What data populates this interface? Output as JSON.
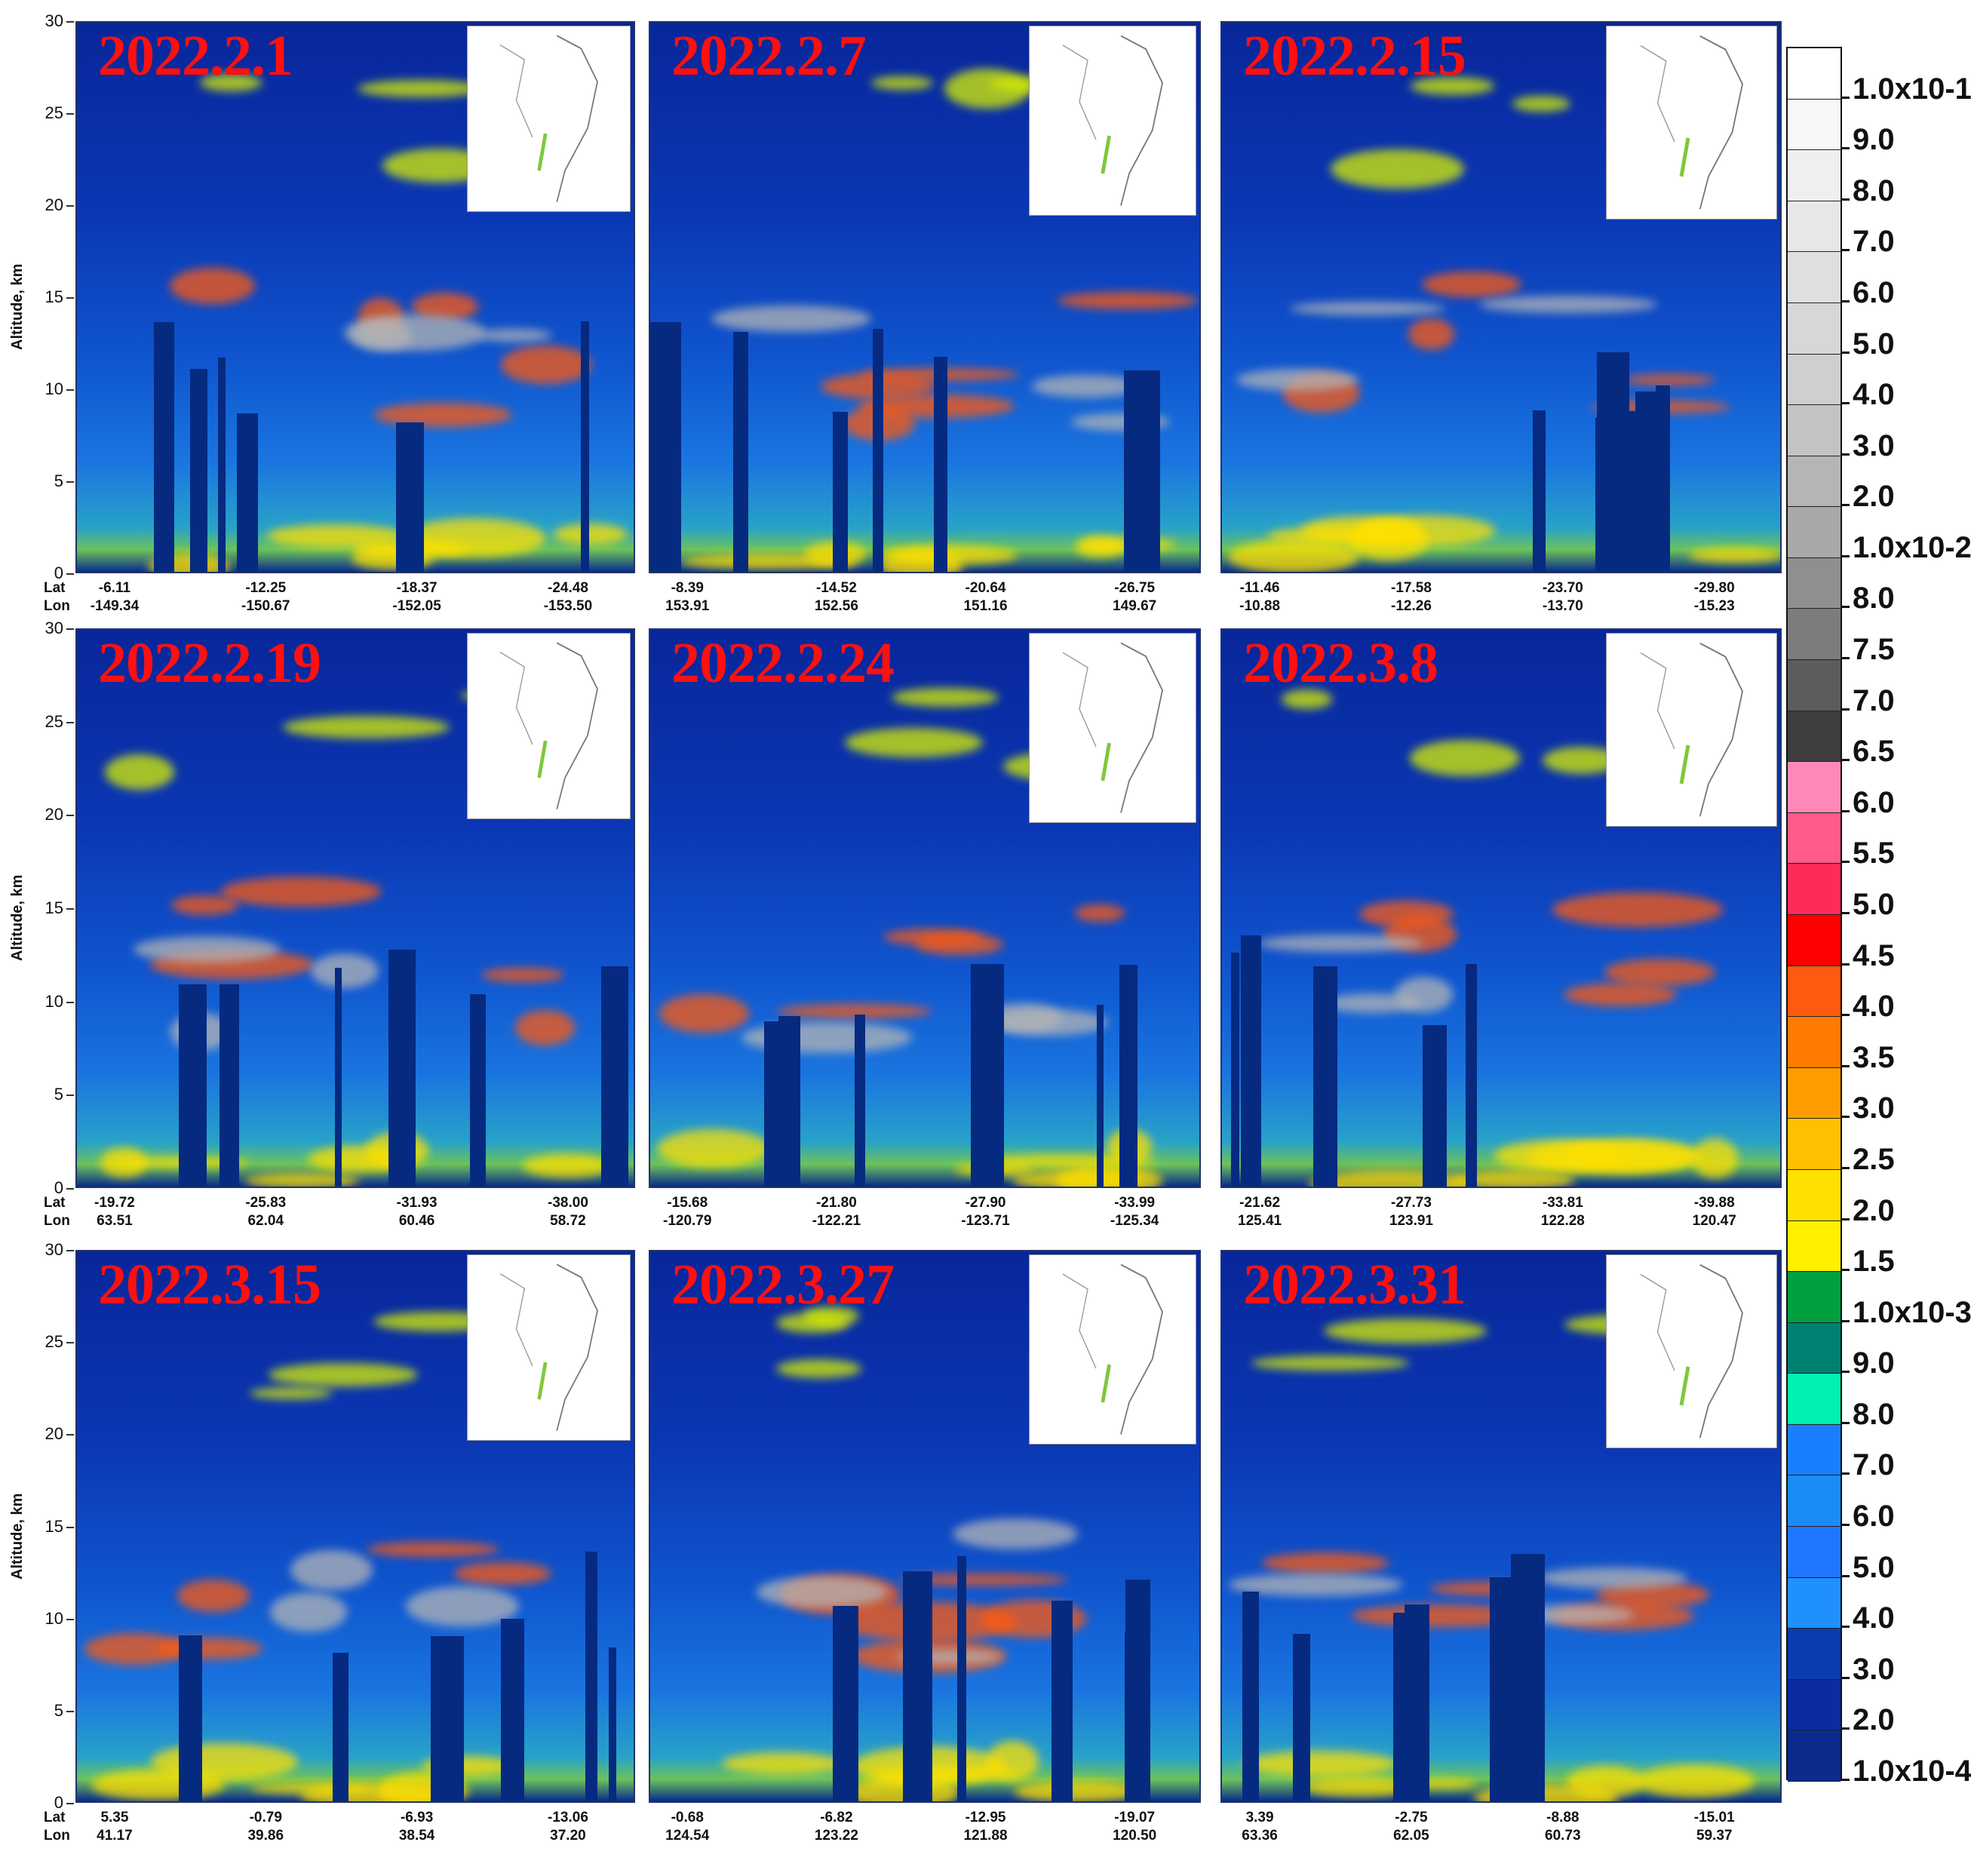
{
  "yaxis": {
    "label": "Altitude, km",
    "ticks": [
      "30",
      "25",
      "20",
      "15",
      "10",
      "5",
      "0"
    ]
  },
  "row_labels": {
    "lat": "Lat",
    "lon": "Lon"
  },
  "colorbar": {
    "labels": [
      "1.0x10-1",
      "9.0",
      "8.0",
      "7.0",
      "6.0",
      "5.0",
      "4.0",
      "3.0",
      "2.0",
      "1.0x10-2",
      "8.0",
      "7.5",
      "7.0",
      "6.5",
      "6.0",
      "5.5",
      "5.0",
      "4.5",
      "4.0",
      "3.5",
      "3.0",
      "2.5",
      "2.0",
      "1.5",
      "1.0x10-3",
      "9.0",
      "8.0",
      "7.0",
      "6.0",
      "5.0",
      "4.0",
      "3.0",
      "2.0",
      "1.0x10-4"
    ],
    "colors": [
      "#ffffff",
      "#f7f7f7",
      "#efefef",
      "#e7e7e7",
      "#dfdfdf",
      "#d7d7d7",
      "#cfcfcf",
      "#c3c3c3",
      "#b5b5b5",
      "#a8a8a8",
      "#8f8f8f",
      "#7c7c7c",
      "#5c5c5c",
      "#3e3e3e",
      "#ff88b8",
      "#ff5a88",
      "#ff2a5a",
      "#ff0000",
      "#ff5a0f",
      "#ff7a00",
      "#ff9d00",
      "#ffc000",
      "#ffe000",
      "#fff000",
      "#00a040",
      "#008070",
      "#00f0b0",
      "#1a7fff",
      "#1a8cf8",
      "#1f77ff",
      "#2090ff",
      "#0a3cb0",
      "#0a2ca0",
      "#0a2a8c"
    ]
  },
  "chart_data": [
    {
      "type": "heatmap",
      "date": "2022.2.1",
      "lat": [
        "-6.11",
        "-12.25",
        "-18.37",
        "-24.48"
      ],
      "lon": [
        "-149.34",
        "-150.67",
        "-152.05",
        "-153.50"
      ],
      "ylim": [
        0,
        30
      ],
      "ylabel": "Altitude, km"
    },
    {
      "type": "heatmap",
      "date": "2022.2.7",
      "lat": [
        "-8.39",
        "-14.52",
        "-20.64",
        "-26.75"
      ],
      "lon": [
        "153.91",
        "152.56",
        "151.16",
        "149.67"
      ],
      "ylim": [
        0,
        30
      ]
    },
    {
      "type": "heatmap",
      "date": "2022.2.15",
      "lat": [
        "-11.46",
        "-17.58",
        "-23.70",
        "-29.80"
      ],
      "lon": [
        "-10.88",
        "-12.26",
        "-13.70",
        "-15.23"
      ],
      "ylim": [
        0,
        30
      ]
    },
    {
      "type": "heatmap",
      "date": "2022.2.19",
      "lat": [
        "-19.72",
        "-25.83",
        "-31.93",
        "-38.00"
      ],
      "lon": [
        "63.51",
        "62.04",
        "60.46",
        "58.72"
      ],
      "ylim": [
        0,
        30
      ],
      "ylabel": "Altitude, km"
    },
    {
      "type": "heatmap",
      "date": "2022.2.24",
      "lat": [
        "-15.68",
        "-21.80",
        "-27.90",
        "-33.99"
      ],
      "lon": [
        "-120.79",
        "-122.21",
        "-123.71",
        "-125.34"
      ],
      "ylim": [
        0,
        30
      ]
    },
    {
      "type": "heatmap",
      "date": "2022.3.8",
      "lat": [
        "-21.62",
        "-27.73",
        "-33.81",
        "-39.88"
      ],
      "lon": [
        "125.41",
        "123.91",
        "122.28",
        "120.47"
      ],
      "ylim": [
        0,
        30
      ]
    },
    {
      "type": "heatmap",
      "date": "2022.3.15",
      "lat": [
        "5.35",
        "-0.79",
        "-6.93",
        "-13.06"
      ],
      "lon": [
        "41.17",
        "39.86",
        "38.54",
        "37.20"
      ],
      "ylim": [
        0,
        30
      ],
      "ylabel": "Altitude, km"
    },
    {
      "type": "heatmap",
      "date": "2022.3.27",
      "lat": [
        "-0.68",
        "-6.82",
        "-12.95",
        "-19.07"
      ],
      "lon": [
        "124.54",
        "123.22",
        "121.88",
        "120.50"
      ],
      "ylim": [
        0,
        30
      ]
    },
    {
      "type": "heatmap",
      "date": "2022.3.31",
      "lat": [
        "3.39",
        "-2.75",
        "-8.88",
        "-15.01"
      ],
      "lon": [
        "63.36",
        "62.05",
        "60.73",
        "59.37"
      ],
      "ylim": [
        0,
        30
      ]
    }
  ]
}
